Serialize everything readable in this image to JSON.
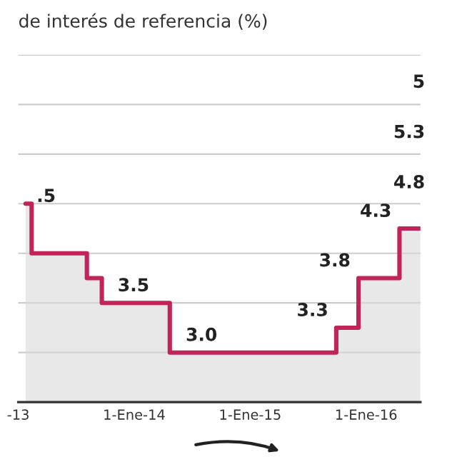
{
  "chart_data": {
    "type": "step",
    "title": "de interés de referencia (%)",
    "x": [
      "2013-01-24",
      "2013-02-12",
      "2013-08-05",
      "2013-09-21",
      "2014-04-23",
      "2015-09-29",
      "2015-12-08",
      "2016-04-15",
      "2016-06-20"
    ],
    "series": [
      {
        "color": "#c0245a",
        "values": [
          4.5,
          4.0,
          3.75,
          3.5,
          3.0,
          3.25,
          3.75,
          4.25,
          4.25
        ],
        "value_labels": [
          null,
          null,
          null,
          "3.5",
          "3.0",
          "3.3",
          "3.8",
          "4.3",
          null
        ]
      }
    ],
    "xlim": [
      "2013-01-01",
      "2016-06-20"
    ],
    "xticks": [
      {
        "value": "2013-01-01",
        "label": "-13"
      },
      {
        "value": "2014-01-01",
        "label": "1-Ene-14"
      },
      {
        "value": "2015-01-01",
        "label": "1-Ene-15"
      },
      {
        "value": "2016-01-01",
        "label": "1-Ene-16"
      }
    ],
    "ylim": [
      2.5,
      6.0
    ],
    "yticks": [
      {
        "value": 3.0,
        "label": null
      },
      {
        "value": 3.5,
        "label": null
      },
      {
        "value": 4.0,
        "label": null
      },
      {
        "value": 4.5,
        "label": null
      },
      {
        "value": 5.0,
        "label": null
      },
      {
        "value": 5.5,
        "label": null
      },
      {
        "value": 6.0,
        "label": null
      }
    ],
    "tick_labels": "x",
    "grid": "y",
    "legend": false,
    "annotations": [
      ".5",
      "5",
      "5.3",
      "4.8"
    ]
  }
}
